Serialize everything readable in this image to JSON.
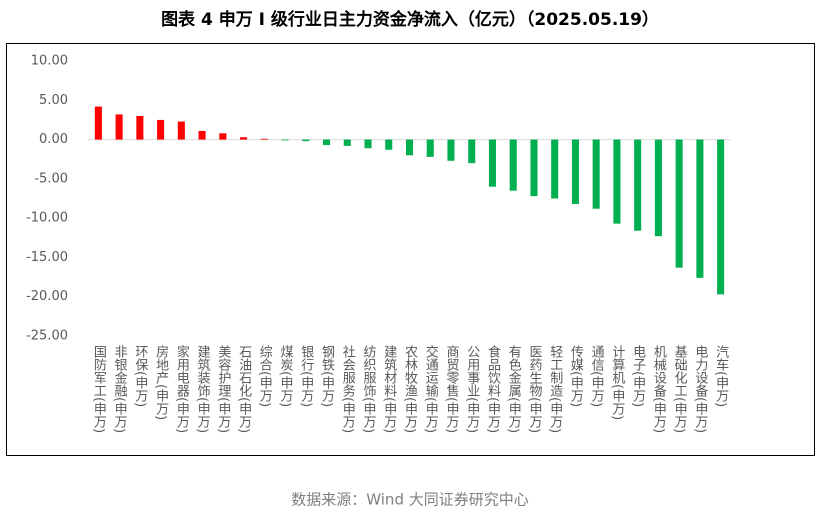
{
  "chart_data": {
    "type": "bar",
    "title": "图表 4  申万 I 级行业日主力资金净流入（亿元）（2025.05.19）",
    "source": "数据来源：Wind 大同证券研究中心",
    "categories": [
      "国防军工(申万)",
      "非银金融(申万)",
      "环保(申万)",
      "房地产(申万)",
      "家用电器(申万)",
      "建筑装饰(申万)",
      "美容护理(申万)",
      "石油石化(申万)",
      "综合(申万)",
      "煤炭(申万)",
      "银行(申万)",
      "钢铁(申万)",
      "社会服务(申万)",
      "纺织服饰(申万)",
      "建筑材料(申万)",
      "农林牧渔(申万)",
      "交通运输(申万)",
      "商贸零售(申万)",
      "公用事业(申万)",
      "食品饮料(申万)",
      "有色金属(申万)",
      "医药生物(申万)",
      "轻工制造(申万)",
      "传媒(申万)",
      "通信(申万)",
      "计算机(申万)",
      "电子(申万)",
      "机械设备(申万)",
      "基础化工(申万)",
      "电力设备(申万)",
      "汽车(申万)"
    ],
    "values": [
      4.2,
      3.2,
      3.0,
      2.5,
      2.3,
      1.1,
      0.8,
      0.3,
      0.1,
      -0.1,
      -0.2,
      -0.7,
      -0.8,
      -1.1,
      -1.3,
      -2.0,
      -2.2,
      -2.7,
      -3.0,
      -6.0,
      -6.5,
      -7.2,
      -7.5,
      -8.2,
      -8.8,
      -10.7,
      -11.6,
      -12.3,
      -16.3,
      -17.6,
      -19.7
    ],
    "positive_color": "#ff0000",
    "negative_color": "#00b050",
    "ylim": [
      -25,
      10
    ],
    "yticks": [
      {
        "value": -25,
        "label": "-25.00"
      },
      {
        "value": -20,
        "label": "-20.00"
      },
      {
        "value": -15,
        "label": "-15.00"
      },
      {
        "value": -10,
        "label": "-10.00"
      },
      {
        "value": -5,
        "label": "-5.00"
      },
      {
        "value": 0,
        "label": "0.00"
      },
      {
        "value": 5,
        "label": "5.00"
      },
      {
        "value": 10,
        "label": "10.00"
      }
    ],
    "grid": false
  }
}
